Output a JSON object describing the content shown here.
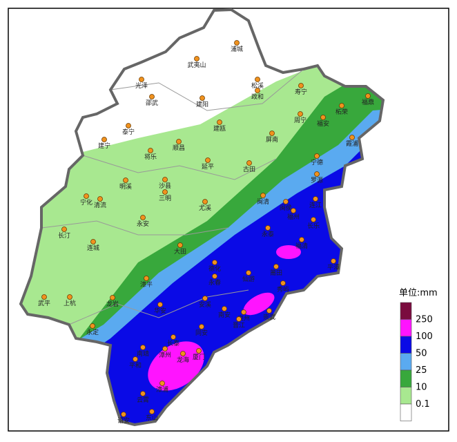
{
  "map": {
    "cities": [
      "浦城",
      "武夷山",
      "光泽",
      "松溪",
      "邵武",
      "建阳",
      "政和",
      "寿宁",
      "福鼎",
      "柘荣",
      "周宁",
      "福安",
      "建瓯",
      "泰宁",
      "建宁",
      "屏南",
      "霞浦",
      "将乐",
      "顺昌",
      "宁德",
      "古田",
      "延平",
      "明溪",
      "沙县",
      "罗源",
      "宁化",
      "清流",
      "三明",
      "闽清",
      "连江",
      "闽侯",
      "尤溪",
      "福州",
      "永安",
      "长乐",
      "长汀",
      "永泰",
      "连城",
      "福清",
      "大田",
      "平潭",
      "德化",
      "永春",
      "仙游",
      "莆田",
      "漳平",
      "秀屿",
      "武平",
      "上杭",
      "龙岩",
      "华安",
      "安溪",
      "南安",
      "泉州",
      "晋江",
      "崇武",
      "永定",
      "同安",
      "长泰",
      "南靖",
      "漳州",
      "厦门",
      "龙海",
      "平和",
      "漳浦",
      "云霄",
      "诏安",
      "东山"
    ],
    "legend": {
      "title": "单位:mm",
      "labels": [
        "250",
        "100",
        "50",
        "25",
        "10",
        "0.1"
      ],
      "colors": [
        "#7a0b3e",
        "#ff14ff",
        "#0a0ae6",
        "#5aaaf0",
        "#38a83c",
        "#a8e890",
        "#ffffff"
      ]
    }
  }
}
